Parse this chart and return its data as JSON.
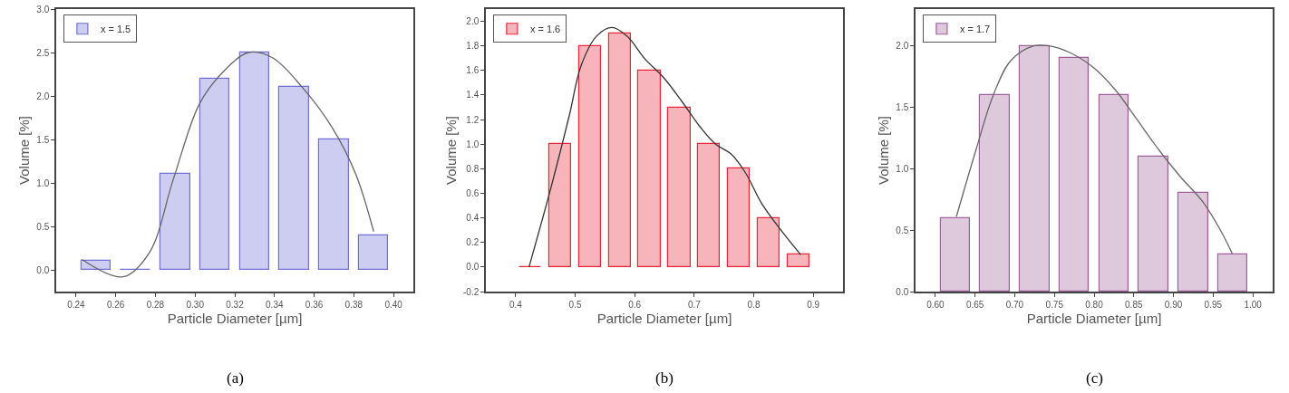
{
  "chart_data": [
    {
      "type": "bar",
      "xlabel": "Particle Diameter [µm]",
      "ylabel": "Volume [%]",
      "annotations": [
        "(a)"
      ],
      "legend": "top left",
      "grid": false,
      "xlim": [
        0.23,
        0.41
      ],
      "xticks": [
        {
          "value": 0.24,
          "label": "0.24"
        },
        {
          "value": 0.26,
          "label": "0.26"
        },
        {
          "value": 0.28,
          "label": "0.28"
        },
        {
          "value": 0.3,
          "label": "0.30"
        },
        {
          "value": 0.32,
          "label": "0.32"
        },
        {
          "value": 0.34,
          "label": "0.34"
        },
        {
          "value": 0.36,
          "label": "0.36"
        },
        {
          "value": 0.38,
          "label": "0.38"
        },
        {
          "value": 0.4,
          "label": "0.40"
        }
      ],
      "ylim": [
        -0.25,
        3.0
      ],
      "yticks": [
        {
          "value": 0,
          "label": "0.0"
        },
        0.5,
        {
          "value": 1,
          "label": "1.0"
        },
        1.5,
        {
          "value": 2,
          "label": "2.0"
        },
        2.5,
        {
          "value": 3,
          "label": "3.0"
        }
      ],
      "series": [
        {
          "name": "x = 1.5",
          "color": "#7070d8",
          "x": [
            0.25,
            0.27,
            0.29,
            0.31,
            0.33,
            0.35,
            0.37,
            0.39
          ],
          "values": [
            0.1,
            0,
            1.1,
            2.2,
            2.5,
            2.1,
            1.5,
            0.4
          ]
        },
        {
          "type": "line",
          "color": "#666666",
          "x": [
            0.243,
            0.2637,
            0.277,
            0.289,
            0.302,
            0.313,
            0.327,
            0.339,
            0.354,
            0.369,
            0.381,
            0.39
          ],
          "values": [
            0.12,
            -0.08,
            0.2,
            1.04,
            1.9,
            2.25,
            2.5,
            2.44,
            2.1,
            1.64,
            1.1,
            0.44
          ]
        }
      ]
    },
    {
      "type": "bar",
      "xlabel": "Particle Diameter [µm]",
      "ylabel": "Volume [%]",
      "annotations": [
        "(b)"
      ],
      "legend": "top left",
      "grid": false,
      "xlim": [
        0.35,
        0.95
      ],
      "xticks": [
        0.4,
        0.5,
        0.6,
        0.7,
        0.8,
        0.9
      ],
      "ylim": [
        -0.2,
        2.1
      ],
      "yticks": [
        -0.2,
        {
          "value": 0,
          "label": "0.0"
        },
        0.2,
        0.4,
        0.6,
        0.8,
        {
          "value": 1,
          "label": "1.0"
        },
        1.2,
        1.4,
        1.6,
        1.8,
        {
          "value": 2,
          "label": "2.0"
        }
      ],
      "series": [
        {
          "name": "x = 1.6",
          "color": "#e8283a",
          "x": [
            0.425,
            0.475,
            0.525,
            0.575,
            0.625,
            0.675,
            0.725,
            0.775,
            0.825,
            0.875
          ],
          "values": [
            0,
            1.0,
            1.8,
            1.9,
            1.6,
            1.3,
            1.0,
            0.8,
            0.4,
            0.1
          ]
        },
        {
          "type": "line",
          "color": "#333333",
          "x": [
            0.4225,
            0.459,
            0.49,
            0.51,
            0.536,
            0.562,
            0.587,
            0.618,
            0.649,
            0.679,
            0.71,
            0.736,
            0.762,
            0.787,
            0.813,
            0.849,
            0.879
          ],
          "values": [
            0,
            0.64,
            1.23,
            1.64,
            1.88,
            1.95,
            1.88,
            1.69,
            1.54,
            1.35,
            1.14,
            1.0,
            0.92,
            0.76,
            0.52,
            0.28,
            0.1
          ]
        }
      ]
    },
    {
      "type": "bar",
      "xlabel": "Particle Diameter [µm]",
      "ylabel": "Volume [%]",
      "annotations": [
        "(c)"
      ],
      "legend": "top left",
      "grid": false,
      "xlim": [
        0.575,
        1.025
      ],
      "xticks": [
        {
          "value": 0.6,
          "label": "0.60"
        },
        0.65,
        {
          "value": 0.7,
          "label": "0.70"
        },
        0.75,
        {
          "value": 0.8,
          "label": "0.80"
        },
        0.85,
        {
          "value": 0.9,
          "label": "0.90"
        },
        0.95,
        {
          "value": 1,
          "label": "1.00"
        }
      ],
      "ylim": [
        0,
        2.3
      ],
      "yticks": [
        {
          "value": 0,
          "label": "0.0"
        },
        0.5,
        {
          "value": 1,
          "label": "1.0"
        },
        1.5,
        {
          "value": 2,
          "label": "2.0"
        }
      ],
      "series": [
        {
          "name": "x = 1.7",
          "color": "#a0609a",
          "x": [
            0.625,
            0.675,
            0.725,
            0.775,
            0.825,
            0.875,
            0.925,
            0.975
          ],
          "values": [
            0.6,
            1.6,
            2.0,
            1.9,
            1.6,
            1.1,
            0.8,
            0.3
          ]
        },
        {
          "type": "line",
          "color": "#666666",
          "x": [
            0.6265,
            0.651,
            0.673,
            0.695,
            0.724,
            0.743,
            0.768,
            0.798,
            0.827,
            0.853,
            0.882,
            0.908,
            0.937,
            0.96,
            0.974
          ],
          "values": [
            0.61,
            1.15,
            1.6,
            1.88,
            2.0,
            2.0,
            1.95,
            1.83,
            1.64,
            1.41,
            1.15,
            0.94,
            0.73,
            0.49,
            0.31
          ]
        }
      ]
    }
  ]
}
